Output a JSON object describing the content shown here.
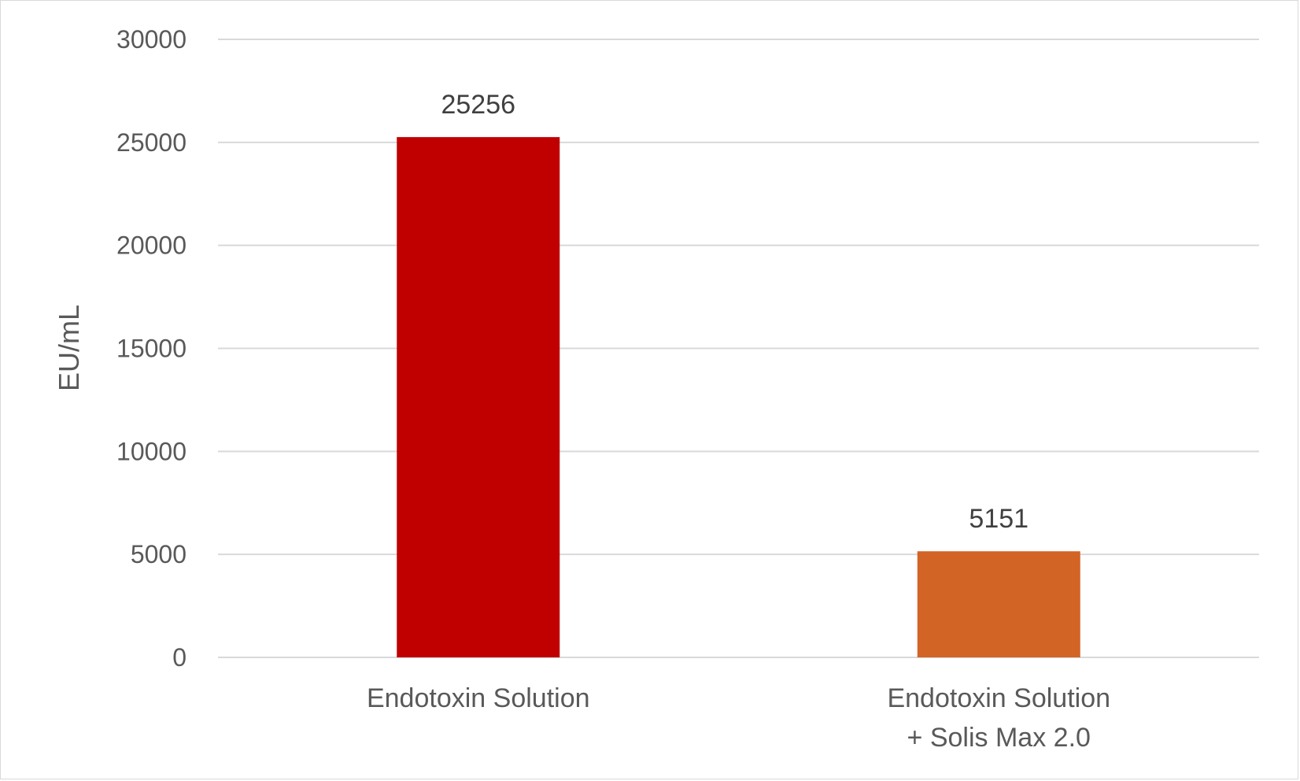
{
  "chart_data": {
    "type": "bar",
    "categories": [
      [
        "Endotoxin Solution"
      ],
      [
        "Endotoxin Solution",
        "+ Solis Max 2.0"
      ]
    ],
    "values": [
      25256,
      5151
    ],
    "data_labels": [
      "25256",
      "5151"
    ],
    "bar_colors": [
      "#c00000",
      "#d26426"
    ],
    "ylabel": "EU/mL",
    "ylim": [
      0,
      30000
    ],
    "yticks": [
      0,
      5000,
      10000,
      15000,
      20000,
      25000,
      30000
    ],
    "grid": true,
    "legend": "none"
  }
}
